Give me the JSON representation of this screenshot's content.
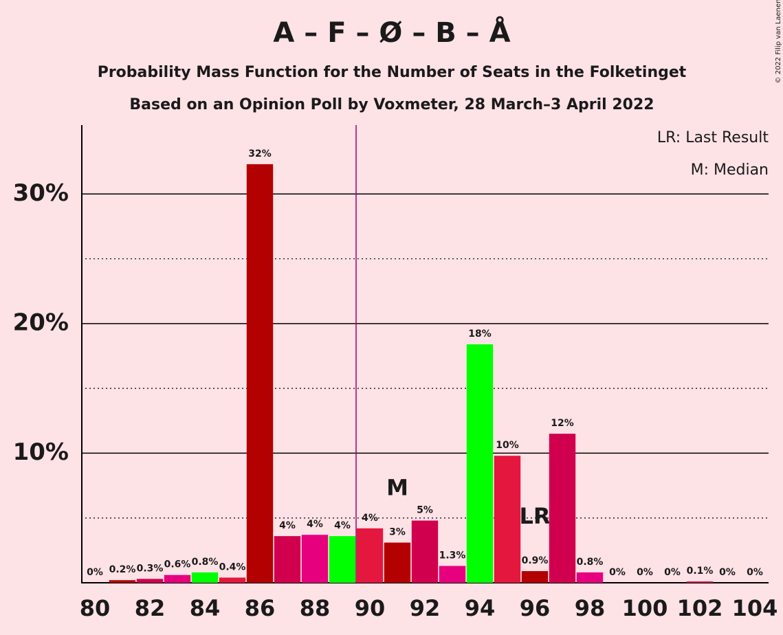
{
  "chart_data": {
    "type": "bar",
    "title": "A – F – Ø – B – Å",
    "subtitle": "Probability Mass Function for the Number of Seats in the Folketinget",
    "subtitle2": "Based on an Opinion Poll by Voxmeter, 28 March–3 April 2022",
    "copyright": "© 2022 Filip van Laenen",
    "legend_items": [
      "LR: Last Result",
      "M: Median"
    ],
    "x": [
      80,
      81,
      82,
      83,
      84,
      85,
      86,
      87,
      88,
      89,
      90,
      91,
      92,
      93,
      94,
      95,
      96,
      97,
      98,
      99,
      100,
      101,
      102,
      103,
      104
    ],
    "values": [
      0,
      0.2,
      0.3,
      0.6,
      0.8,
      0.4,
      32.3,
      3.6,
      3.7,
      3.6,
      4.2,
      3.1,
      4.8,
      1.3,
      18.4,
      9.8,
      0.9,
      11.5,
      0.8,
      0,
      0,
      0,
      0.1,
      0,
      0
    ],
    "value_labels": [
      "0%",
      "0.2%",
      "0.3%",
      "0.6%",
      "0.8%",
      "0.4%",
      "32%",
      "4%",
      "4%",
      "4%",
      "4%",
      "3%",
      "5%",
      "1.3%",
      "18%",
      "10%",
      "0.9%",
      "12%",
      "0.8%",
      "0%",
      "0%",
      "0%",
      "0.1%",
      "0%",
      "0%"
    ],
    "colors": [
      "#e4173f",
      "#b30000",
      "#d1004e",
      "#e6007e",
      "#00ff00",
      "#e4173f",
      "#b30000",
      "#d1004e",
      "#e6007e",
      "#00ff00",
      "#e4173f",
      "#b30000",
      "#d1004e",
      "#e6007e",
      "#00ff00",
      "#e4173f",
      "#b30000",
      "#d1004e",
      "#e6007e",
      "#00ff00",
      "#e4173f",
      "#b30000",
      "#d1004e",
      "#e6007e",
      "#00ff00"
    ],
    "xlim": [
      79.5,
      104.5
    ],
    "xticks": [
      80,
      82,
      84,
      86,
      88,
      90,
      92,
      94,
      96,
      98,
      100,
      102,
      104
    ],
    "ylim": [
      0,
      35
    ],
    "yticks": [
      {
        "value": 10,
        "label": "10%"
      },
      {
        "value": 20,
        "label": "20%"
      },
      {
        "value": 30,
        "label": "30%"
      }
    ],
    "minor_yticks": [
      5,
      15,
      25
    ],
    "grid": true,
    "majority_line": 89.5,
    "majority_color": "#a0006a",
    "median": 91,
    "median_label": "M",
    "last_result": 96,
    "last_result_label": "LR"
  }
}
